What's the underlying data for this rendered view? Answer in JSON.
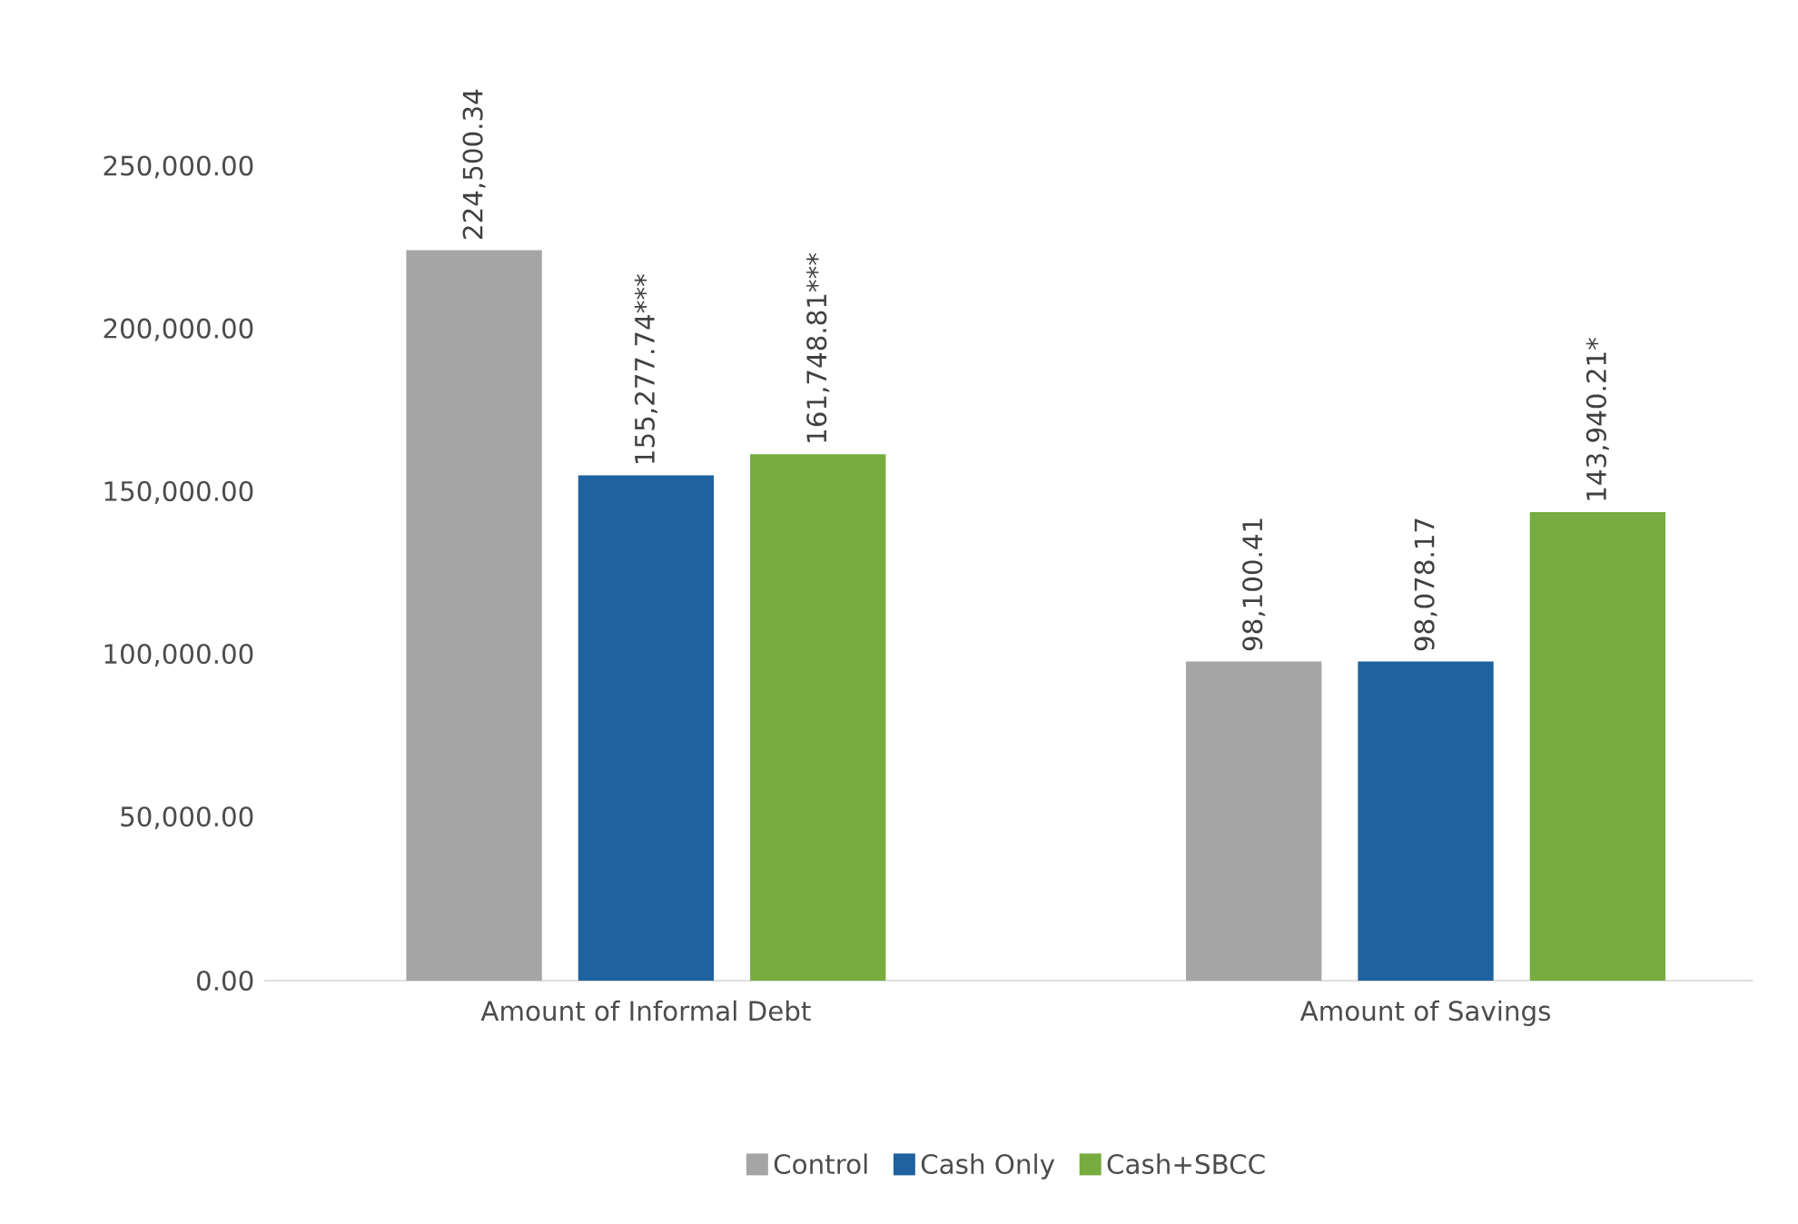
{
  "chart_data": {
    "type": "bar",
    "categories": [
      "Amount of Informal Debt",
      "Amount of Savings"
    ],
    "series": [
      {
        "name": "Control",
        "color": "#a5a5a5",
        "values": [
          224500.34,
          98100.41
        ],
        "value_labels": [
          "224,500.34",
          "98,100.41"
        ]
      },
      {
        "name": "Cash Only",
        "color": "#1f62a0",
        "values": [
          155277.74,
          98078.17
        ],
        "value_labels": [
          "155,277.74***",
          "98,078.17"
        ]
      },
      {
        "name": "Cash+SBCC",
        "color": "#77ac41",
        "values": [
          161748.81,
          143940.21
        ],
        "value_labels": [
          "161,748.81***",
          "143,940.21*"
        ]
      }
    ],
    "ylim": [
      0,
      250000
    ],
    "yticks": [
      {
        "value": 0,
        "label": "0.00"
      },
      {
        "value": 50000,
        "label": "50,000.00"
      },
      {
        "value": 100000,
        "label": "100,000.00"
      },
      {
        "value": 150000,
        "label": "150,000.00"
      },
      {
        "value": 200000,
        "label": "200,000.00"
      },
      {
        "value": 250000,
        "label": "250,000.00"
      }
    ],
    "grid": false,
    "legend": "bottom"
  }
}
